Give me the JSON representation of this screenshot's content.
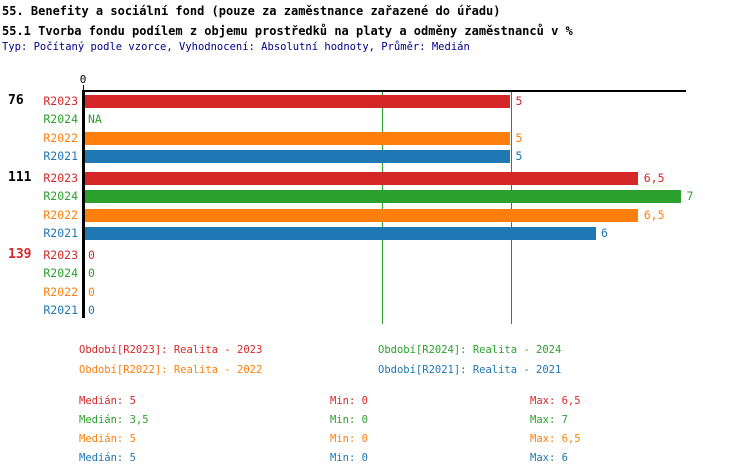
{
  "title": "55. Benefity a sociální fond (pouze za zaměstnance zařazené do úřadu)",
  "subtitle": "55.1 Tvorba fondu podílem z objemu prostředků na platy a odměny zaměstnanců v %",
  "meta_line": "Typ: Počítaný podle vzorce, Vyhodnocení: Absolutní hodnoty, Průměr: Medián",
  "palette": {
    "R2023": "#d62728",
    "R2024": "#2ca02c",
    "R2022": "#ff7f0e",
    "R2021": "#1f77b4",
    "meta_text": "#00008b",
    "axis": "#000000",
    "group_label_default": "#000000",
    "group_label_alert": "#d62728"
  },
  "chart_data": {
    "type": "bar",
    "orientation": "horizontal",
    "unit": "%",
    "x_axis": {
      "tick_labels": [
        "0"
      ],
      "min": 0,
      "max": 7.05
    },
    "groups": [
      {
        "label": "76",
        "alert": false,
        "rows": [
          {
            "series": "R2023",
            "value": 5,
            "value_label": "5"
          },
          {
            "series": "R2024",
            "value": null,
            "value_label": "NA"
          },
          {
            "series": "R2022",
            "value": 5,
            "value_label": "5"
          },
          {
            "series": "R2021",
            "value": 5,
            "value_label": "5"
          }
        ]
      },
      {
        "label": "111",
        "alert": false,
        "rows": [
          {
            "series": "R2023",
            "value": 6.5,
            "value_label": "6,5"
          },
          {
            "series": "R2024",
            "value": 7,
            "value_label": "7"
          },
          {
            "series": "R2022",
            "value": 6.5,
            "value_label": "6,5"
          },
          {
            "series": "R2021",
            "value": 6,
            "value_label": "6"
          }
        ]
      },
      {
        "label": "139",
        "alert": true,
        "rows": [
          {
            "series": "R2023",
            "value": 0,
            "value_label": "0"
          },
          {
            "series": "R2024",
            "value": 0,
            "value_label": "0"
          },
          {
            "series": "R2022",
            "value": 0,
            "value_label": "0"
          },
          {
            "series": "R2021",
            "value": 0,
            "value_label": "0"
          }
        ]
      }
    ],
    "reference_lines": [
      {
        "series": "R2024",
        "value": 3.5
      },
      {
        "series": "R2021",
        "value": 5
      }
    ]
  },
  "legend": {
    "items": [
      {
        "series": "R2023",
        "label": "Období[R2023]: Realita - 2023"
      },
      {
        "series": "R2024",
        "label": "Období[R2024]: Realita - 2024"
      },
      {
        "series": "R2022",
        "label": "Období[R2022]: Realita - 2022"
      },
      {
        "series": "R2021",
        "label": "Období[R2021]: Realita - 2021"
      }
    ]
  },
  "stats": {
    "rows": [
      {
        "series": "R2023",
        "median": "Medián: 5",
        "min": "Min: 0",
        "max": "Max: 6,5"
      },
      {
        "series": "R2024",
        "median": "Medián: 3,5",
        "min": "Min: 0",
        "max": "Max: 7"
      },
      {
        "series": "R2022",
        "median": "Medián: 5",
        "min": "Min: 0",
        "max": "Max: 6,5"
      },
      {
        "series": "R2021",
        "median": "Medián: 5",
        "min": "Min: 0",
        "max": "Max: 6"
      }
    ]
  }
}
